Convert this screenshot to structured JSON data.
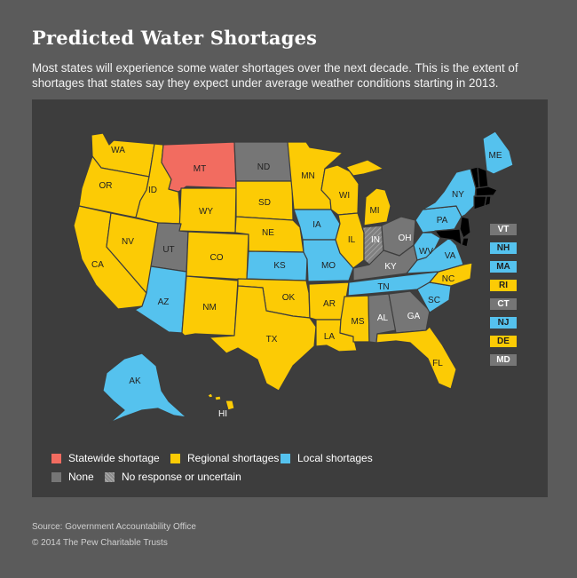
{
  "title": "Predicted Water Shortages",
  "subtitle": "Most states will experience some water shortages over the next decade. This is the extent of shortages that states say they expect under average weather conditions starting in 2013.",
  "colors": {
    "statewide": "#f26c60",
    "regional": "#fccb05",
    "local": "#55c2ee",
    "none": "#767676",
    "uncertain": "#8a8a8a",
    "panel": "#3d3d3d",
    "background": "#5b5b5b"
  },
  "legend": [
    {
      "key": "statewide",
      "label": "Statewide shortage"
    },
    {
      "key": "regional",
      "label": "Regional shortages"
    },
    {
      "key": "local",
      "label": "Local shortages"
    },
    {
      "key": "none",
      "label": "None"
    },
    {
      "key": "uncertain",
      "label": "No response or uncertain"
    }
  ],
  "states": {
    "WA": "regional",
    "OR": "regional",
    "CA": "regional",
    "ID": "regional",
    "NV": "regional",
    "MT": "statewide",
    "WY": "regional",
    "UT": "none",
    "AZ": "local",
    "CO": "regional",
    "NM": "regional",
    "ND": "none",
    "SD": "regional",
    "NE": "regional",
    "KS": "local",
    "OK": "regional",
    "TX": "regional",
    "MN": "regional",
    "IA": "local",
    "MO": "local",
    "AR": "regional",
    "LA": "regional",
    "WI": "regional",
    "IL": "regional",
    "MI": "regional",
    "IN": "uncertain",
    "OH": "none",
    "KY": "none",
    "TN": "local",
    "MS": "regional",
    "AL": "none",
    "GA": "none",
    "FL": "regional",
    "SC": "local",
    "NC": "regional",
    "VA": "local",
    "WV": "local",
    "PA": "local",
    "NY": "local",
    "ME": "local",
    "AK": "local",
    "HI": "regional"
  },
  "small_states": [
    {
      "abbr": "VT",
      "key": "none"
    },
    {
      "abbr": "NH",
      "key": "local"
    },
    {
      "abbr": "MA",
      "key": "local"
    },
    {
      "abbr": "RI",
      "key": "regional"
    },
    {
      "abbr": "CT",
      "key": "none"
    },
    {
      "abbr": "NJ",
      "key": "local"
    },
    {
      "abbr": "DE",
      "key": "regional"
    },
    {
      "abbr": "MD",
      "key": "none"
    }
  ],
  "source": "Source: Government Accountability Office",
  "copyright": "© 2014 The Pew Charitable Trusts"
}
